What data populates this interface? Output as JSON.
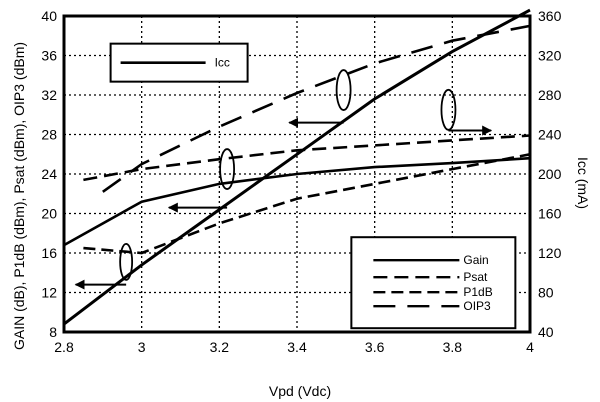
{
  "chart_data": {
    "type": "line",
    "xlabel": "Vpd (Vdc)",
    "ylabel_left": "GAIN (dB), P1dB (dBm), Psat (dBm), OIP3 (dBm)",
    "ylabel_right": "Icc (mA)",
    "xlim": [
      2.8,
      4.0
    ],
    "ylim_left": [
      8,
      40
    ],
    "ylim_right": [
      40,
      360
    ],
    "x_ticks": [
      "2.8",
      "3",
      "3.2",
      "3.4",
      "3.6",
      "3.8",
      "4"
    ],
    "y_left_ticks": [
      "8",
      "12",
      "16",
      "20",
      "24",
      "28",
      "32",
      "36",
      "40"
    ],
    "y_right_ticks": [
      "40",
      "80",
      "120",
      "160",
      "200",
      "240",
      "280",
      "320",
      "360"
    ],
    "grid": true,
    "legend_top": {
      "label": "Icc",
      "placement": "top-left"
    },
    "legend_bottom": {
      "labels": [
        "Gain",
        "Psat",
        "P1dB",
        "OIP3"
      ],
      "placement": "bottom-right"
    },
    "series": [
      {
        "name": "Gain",
        "axis": "left",
        "style": "solid",
        "x": [
          2.8,
          3.0,
          3.2,
          3.4,
          3.6,
          3.8,
          4.0
        ],
        "y": [
          16.8,
          21.2,
          23.0,
          24.0,
          24.7,
          25.1,
          25.6
        ]
      },
      {
        "name": "Psat",
        "axis": "left",
        "style": "dashed",
        "x": [
          2.85,
          3.0,
          3.2,
          3.4,
          3.6,
          3.8,
          4.0
        ],
        "y": [
          23.4,
          24.5,
          25.5,
          26.4,
          26.9,
          27.4,
          27.9
        ]
      },
      {
        "name": "P1dB",
        "axis": "left",
        "style": "dashdot",
        "x": [
          2.85,
          3.0,
          3.2,
          3.4,
          3.6,
          3.8,
          4.0
        ],
        "y": [
          16.5,
          16.0,
          19.0,
          21.5,
          23.0,
          24.5,
          26.0
        ]
      },
      {
        "name": "OIP3",
        "axis": "left",
        "style": "longdash",
        "x": [
          2.9,
          3.0,
          3.2,
          3.4,
          3.6,
          3.8,
          4.0
        ],
        "y": [
          22.2,
          25.0,
          28.8,
          32.2,
          35.2,
          37.5,
          39.0
        ]
      },
      {
        "name": "Icc",
        "axis": "right",
        "style": "solid",
        "x": [
          2.8,
          3.0,
          3.2,
          3.4,
          3.6,
          3.8,
          4.0
        ],
        "y": [
          48,
          108,
          164,
          220,
          276,
          324,
          366
        ]
      }
    ],
    "colors": {
      "line": "#000000",
      "grid": "#000000",
      "background": "#ffffff"
    }
  }
}
